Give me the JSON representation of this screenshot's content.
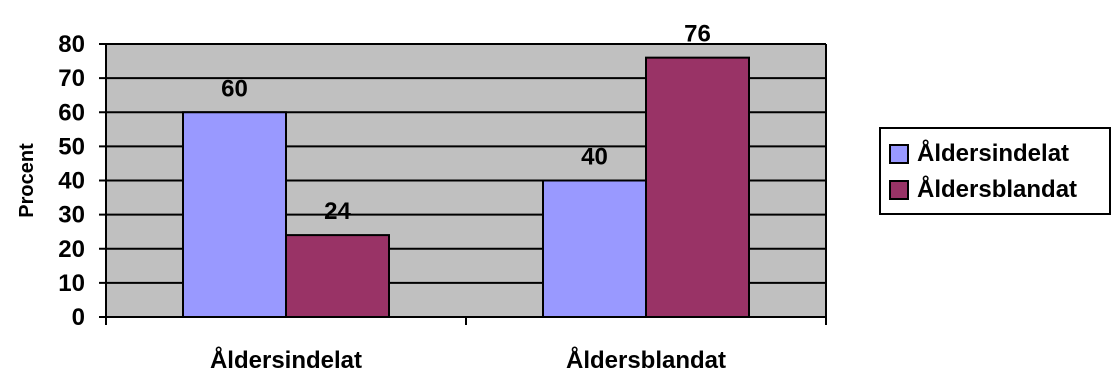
{
  "chart_data": {
    "type": "bar",
    "categories": [
      "Åldersindelat",
      "Åldersblandat"
    ],
    "series": [
      {
        "name": "Åldersindelat",
        "values": [
          60,
          40
        ],
        "color": "#9999FF"
      },
      {
        "name": "Åldersblandat",
        "values": [
          24,
          76
        ],
        "color": "#993366"
      }
    ],
    "ylabel": "Procent",
    "ylim": [
      0,
      80
    ],
    "yticks": [
      0,
      10,
      20,
      30,
      40,
      50,
      60,
      70,
      80
    ],
    "grid": true,
    "plot_background": "#C0C0C0",
    "legend_position": "right"
  }
}
